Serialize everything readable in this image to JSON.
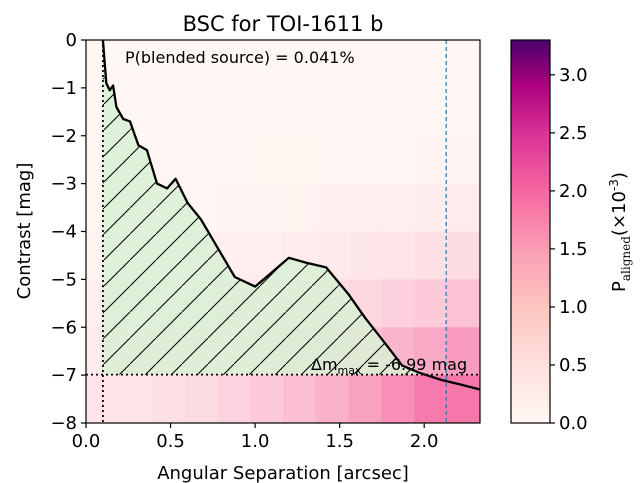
{
  "chart_data": {
    "type": "line",
    "title": "BSC for TOI-1611 b",
    "xlabel": "Angular Separation [arcsec]",
    "ylabel": "Contrast [mag]",
    "xlim": [
      0.0,
      2.33
    ],
    "ylim": [
      0,
      -8
    ],
    "xticks": [
      "0.0",
      "0.5",
      "1.0",
      "1.5",
      "2.0"
    ],
    "xtick_values": [
      0.0,
      0.5,
      1.0,
      1.5,
      2.0
    ],
    "yticks": [
      "0",
      "−1",
      "−2",
      "−3",
      "−4",
      "−5",
      "−6",
      "−7",
      "−8"
    ],
    "ytick_values": [
      0,
      -1,
      -2,
      -3,
      -4,
      -5,
      -6,
      -7,
      -8
    ],
    "annotation_blended": "P(blended source) = 0.041%",
    "annotation_dm": {
      "prefix": "Δm",
      "subscript": "max",
      "suffix": " =  -6.99 mag"
    },
    "contrast_curve": {
      "x": [
        0.1,
        0.12,
        0.14,
        0.16,
        0.18,
        0.22,
        0.26,
        0.31,
        0.36,
        0.42,
        0.48,
        0.53,
        0.6,
        0.68,
        0.78,
        0.88,
        1.0,
        1.1,
        1.2,
        1.3,
        1.42,
        1.55,
        1.65,
        1.75,
        1.87,
        1.97,
        2.1,
        2.22,
        2.33
      ],
      "y": [
        0.0,
        -0.9,
        -1.05,
        -0.95,
        -1.4,
        -1.65,
        -1.7,
        -2.2,
        -2.3,
        -3.0,
        -3.1,
        -2.9,
        -3.4,
        -3.75,
        -4.35,
        -4.95,
        -5.15,
        -4.85,
        -4.55,
        -4.65,
        -4.75,
        -5.3,
        -5.8,
        -6.25,
        -6.8,
        -6.95,
        -7.1,
        -7.2,
        -7.3
      ]
    },
    "dm_max": -6.99,
    "min_separation": 0.1,
    "max_separation": 2.13,
    "colorbar": {
      "label_main": "P",
      "label_sub": "aligned",
      "label_tail": "(×10",
      "label_exp": "-3",
      "label_close": ")",
      "vmin": 0.0,
      "vmax": 3.3,
      "ticks": [
        "0.0",
        "0.5",
        "1.0",
        "1.5",
        "2.0",
        "2.5",
        "3.0"
      ],
      "tick_values": [
        0.0,
        0.5,
        1.0,
        1.5,
        2.0,
        2.5,
        3.0
      ]
    },
    "colors": {
      "colormap_low": "#fff7f3",
      "colormap_mid": "#f768a1",
      "colormap_high": "#49006a",
      "fill": "#d9f0d3",
      "curve": "#000000",
      "vline_blue": "#1f77b4"
    }
  }
}
